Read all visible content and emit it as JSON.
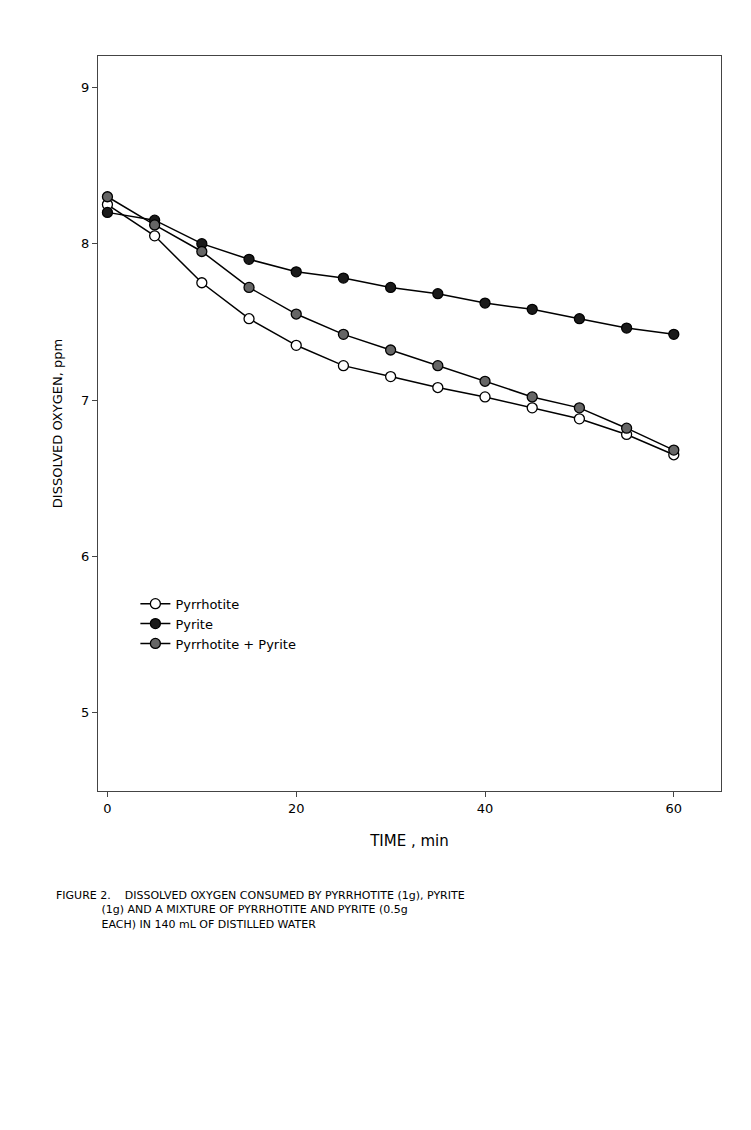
{
  "chart_data": {
    "type": "line",
    "xlabel": "TIME , min",
    "ylabel": "DISSOLVED OXYGEN, ppm",
    "x": [
      0,
      5,
      10,
      15,
      20,
      25,
      30,
      35,
      40,
      45,
      50,
      55,
      60
    ],
    "series": [
      {
        "name": "Pyrrhotite",
        "color": "#000000",
        "marker": "circle-open",
        "values": [
          8.25,
          8.05,
          7.75,
          7.52,
          7.35,
          7.22,
          7.15,
          7.08,
          7.02,
          6.95,
          6.88,
          6.78,
          6.65
        ]
      },
      {
        "name": "Pyrite",
        "color": "#000000",
        "marker": "circle-dark",
        "values": [
          8.2,
          8.15,
          8.0,
          7.9,
          7.82,
          7.78,
          7.72,
          7.68,
          7.62,
          7.58,
          7.52,
          7.46,
          7.42
        ]
      },
      {
        "name": "Pyrrhotite + Pyrite",
        "color": "#000000",
        "marker": "circle-grey",
        "values": [
          8.3,
          8.12,
          7.95,
          7.72,
          7.55,
          7.42,
          7.32,
          7.22,
          7.12,
          7.02,
          6.95,
          6.82,
          6.68
        ]
      }
    ],
    "xlim": [
      -1,
      65
    ],
    "ylim": [
      4.5,
      9.2
    ],
    "xticks": [
      0,
      20,
      40,
      60
    ],
    "yticks": [
      5,
      6,
      7,
      8,
      9
    ],
    "grid": false,
    "legend": "lower left",
    "annotations": [
      "FIGURE 2.    DISSOLVED OXYGEN CONSUMED BY PYRRHOTITE (1g), PYRITE",
      "             (1g) AND A MIXTURE OF PYRRHOTITE AND PYRITE (0.5g",
      "             EACH) IN 140 mL OF DISTILLED WATER"
    ]
  }
}
